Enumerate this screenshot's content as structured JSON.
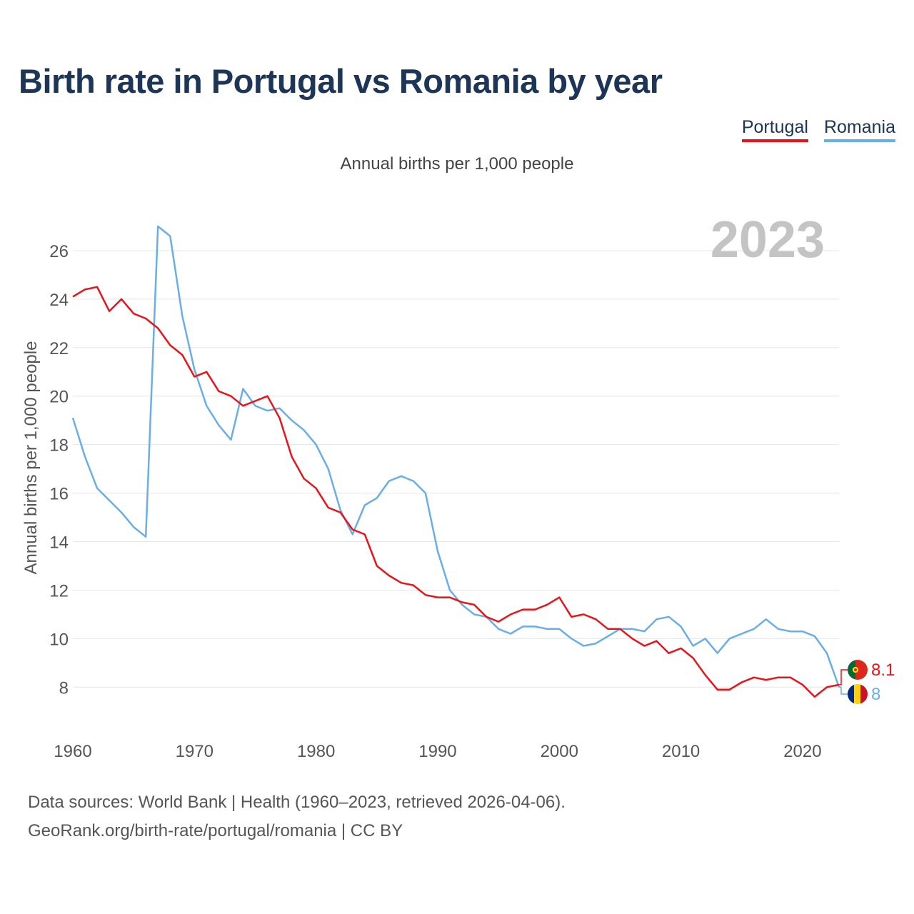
{
  "title": "Birth rate in Portugal vs Romania by year",
  "subtitle": "Annual births per 1,000 people",
  "year_label": "2023",
  "footer": {
    "line1": "Data sources: World Bank | Health (1960–2023, retrieved 2026-04-06).",
    "line2": "GeoRank.org/birth-rate/portugal/romania | CC BY"
  },
  "chart_data": {
    "type": "line",
    "title": "Birth rate in Portugal vs Romania by year",
    "subtitle": "Annual births per 1,000 people",
    "xlabel": "",
    "ylabel": "Annual births per 1,000 people",
    "xlim": [
      1960,
      2023
    ],
    "ylim": [
      6.3,
      27.5
    ],
    "grid": true,
    "legend_position": "top-right",
    "x_ticks": [
      1960,
      1970,
      1980,
      1990,
      2000,
      2010,
      2020
    ],
    "y_ticks": [
      8,
      10,
      12,
      14,
      16,
      18,
      20,
      22,
      24,
      26
    ],
    "x": [
      1960,
      1961,
      1962,
      1963,
      1964,
      1965,
      1966,
      1967,
      1968,
      1969,
      1970,
      1971,
      1972,
      1973,
      1974,
      1975,
      1976,
      1977,
      1978,
      1979,
      1980,
      1981,
      1982,
      1983,
      1984,
      1985,
      1986,
      1987,
      1988,
      1989,
      1990,
      1991,
      1992,
      1993,
      1994,
      1995,
      1996,
      1997,
      1998,
      1999,
      2000,
      2001,
      2002,
      2003,
      2004,
      2005,
      2006,
      2007,
      2008,
      2009,
      2010,
      2011,
      2012,
      2013,
      2014,
      2015,
      2016,
      2017,
      2018,
      2019,
      2020,
      2021,
      2022,
      2023
    ],
    "series": [
      {
        "name": "Portugal",
        "color": "#e8141b",
        "end_label": "8.1",
        "values": [
          24.1,
          24.4,
          24.5,
          23.5,
          24.0,
          23.4,
          23.2,
          22.8,
          22.1,
          21.7,
          20.8,
          21.0,
          20.2,
          20.0,
          19.6,
          19.8,
          20.0,
          19.1,
          17.5,
          16.6,
          16.2,
          15.4,
          15.2,
          14.5,
          14.3,
          13.0,
          12.6,
          12.3,
          12.2,
          11.8,
          11.7,
          11.7,
          11.5,
          11.4,
          10.9,
          10.7,
          11.0,
          11.2,
          11.2,
          11.4,
          11.7,
          10.9,
          11.0,
          10.8,
          10.4,
          10.4,
          10.0,
          9.7,
          9.9,
          9.4,
          9.6,
          9.2,
          8.5,
          7.9,
          7.9,
          8.2,
          8.4,
          8.3,
          8.4,
          8.4,
          8.1,
          7.6,
          8.0,
          8.1
        ]
      },
      {
        "name": "Romania",
        "color": "#6aaee6",
        "end_label": "8",
        "values": [
          19.1,
          17.5,
          16.2,
          15.7,
          15.2,
          14.6,
          14.2,
          27.0,
          26.6,
          23.3,
          21.1,
          19.6,
          18.8,
          18.2,
          20.3,
          19.6,
          19.4,
          19.5,
          19.0,
          18.6,
          18.0,
          17.0,
          15.3,
          14.3,
          15.5,
          15.8,
          16.5,
          16.7,
          16.5,
          16.0,
          13.6,
          12.0,
          11.4,
          11.0,
          10.9,
          10.4,
          10.2,
          10.5,
          10.5,
          10.4,
          10.4,
          10.0,
          9.7,
          9.8,
          10.1,
          10.4,
          10.4,
          10.3,
          10.8,
          10.9,
          10.5,
          9.7,
          10.0,
          9.4,
          10.0,
          10.2,
          10.4,
          10.8,
          10.4,
          10.3,
          10.3,
          10.1,
          9.4,
          8.0
        ]
      }
    ]
  }
}
